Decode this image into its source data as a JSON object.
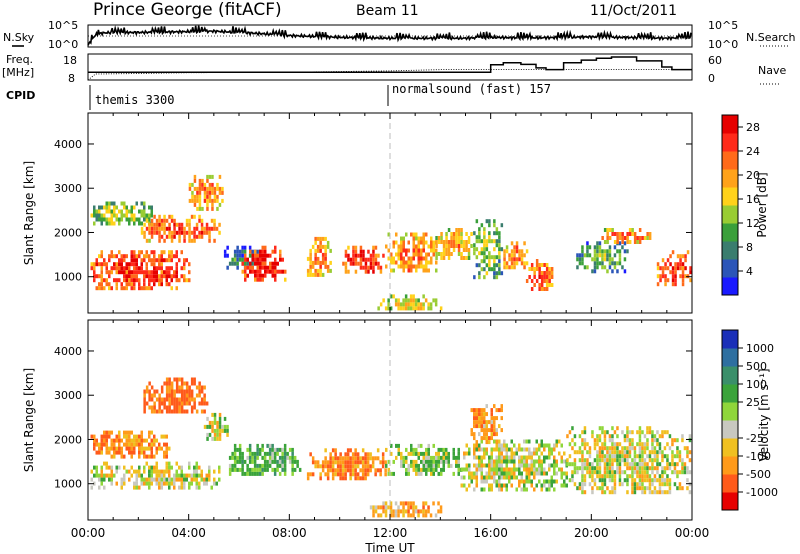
{
  "header": {
    "station": "Prince George (fitACF)",
    "beam": "Beam 11",
    "date": "11/Oct/2011"
  },
  "panels": {
    "noise": {
      "left_label": "N.Sky",
      "right_label": "N.Search",
      "left_ticks": [
        "10^5",
        "10^0"
      ],
      "right_ticks": [
        "10^5",
        "10^0"
      ]
    },
    "freq": {
      "left_label_1": "Freq.",
      "left_label_2": "[MHz]",
      "right_label": "Nave",
      "left_ticks": [
        "18",
        "8"
      ],
      "right_ticks": [
        "60",
        "0"
      ]
    },
    "cpid": {
      "label": "CPID",
      "mode_1": "themis 3300",
      "mode_2": "normalsound (fast) 157"
    }
  },
  "colorbars": {
    "power": {
      "title": "Power [dB]",
      "ticks": [
        "28",
        "24",
        "20",
        "16",
        "12",
        "8",
        "4"
      ],
      "colors": [
        "#1a1aff",
        "#2b55b8",
        "#3a7d6e",
        "#3a9f3a",
        "#99cc33",
        "#ffd21a",
        "#ffa21a",
        "#ff6a1a",
        "#ff2a1a",
        "#e60000"
      ]
    },
    "velocity": {
      "title": "Velocity [m s⁻¹]",
      "ticks": [
        "1000",
        "500",
        "100",
        "25",
        "-25",
        "-100",
        "-500",
        "-1000"
      ],
      "colors": [
        "#1a2fb8",
        "#2e6fa0",
        "#3a8f6a",
        "#3aa33a",
        "#8fd63a",
        "#c8c8c0",
        "#f0c020",
        "#ff9a1a",
        "#ff5a1a",
        "#e60000"
      ]
    }
  },
  "axes": {
    "ylabel": "Slant Range [km]",
    "xlabel": "Time UT",
    "yticks": [
      "4000",
      "3000",
      "2000",
      "1000"
    ],
    "xticks": [
      "00:00",
      "04:00",
      "08:00",
      "12:00",
      "16:00",
      "20:00",
      "00:00"
    ]
  },
  "chart_data": [
    {
      "type": "heatmap",
      "name": "noise",
      "series": [
        {
          "name": "N.Sky",
          "x_hours": [
            0,
            0.3,
            0.6,
            1,
            2,
            3,
            4,
            5,
            6,
            7,
            8,
            9,
            10,
            11,
            12,
            13,
            14,
            15,
            16,
            17,
            18,
            19,
            20,
            21,
            22,
            23,
            24
          ],
          "y_log10": [
            0.4,
            2.8,
            3.2,
            3.3,
            3.3,
            3.4,
            3.5,
            3.6,
            3.3,
            3.0,
            2.6,
            2.4,
            2.2,
            2.1,
            2.0,
            2.0,
            2.0,
            2.0,
            2.2,
            2.1,
            2.1,
            2.2,
            2.3,
            2.2,
            2.1,
            2.0,
            2.2
          ]
        },
        {
          "name": "N.Search",
          "x_hours": [
            0,
            6,
            12,
            18,
            24
          ],
          "y_log10": [
            2.5,
            2.5,
            2.5,
            2.5,
            2.5
          ]
        }
      ]
    },
    {
      "type": "line",
      "name": "frequency_nave",
      "series": [
        {
          "name": "Freq.",
          "x_hours": [
            0,
            0.3,
            2,
            4,
            8,
            12,
            14,
            15.5,
            16.5,
            18,
            20,
            22,
            24
          ],
          "y_mhz": [
            8,
            10.3,
            10.5,
            10.8,
            11.0,
            11.5,
            12.0,
            12.0,
            12.0,
            12.0,
            12.0,
            12.0,
            12.0
          ]
        },
        {
          "name": "Nave",
          "x_hours": [
            0,
            12,
            15.5,
            16,
            16.5,
            17.2,
            17.8,
            18.2,
            18.9,
            19.6,
            20.2,
            20.8,
            21.3,
            21.8,
            22.2,
            22.8,
            23.2,
            24
          ],
          "y_count": [
            18,
            18,
            18,
            35,
            40,
            36,
            28,
            24,
            40,
            46,
            50,
            53,
            53,
            44,
            44,
            30,
            24,
            24
          ]
        }
      ]
    },
    {
      "type": "heatmap",
      "name": "power",
      "x_hours_range": [
        0,
        24
      ],
      "ylim": [
        180,
        4700
      ],
      "colorbar_range_db": [
        0,
        30
      ],
      "blobs": [
        {
          "t": [
            0.1,
            4.0
          ],
          "r": [
            750,
            1600
          ],
          "val": 26
        },
        {
          "t": [
            0.1,
            2.5
          ],
          "r": [
            2200,
            2700
          ],
          "val": 15
        },
        {
          "t": [
            2.0,
            5.2
          ],
          "r": [
            1800,
            2400
          ],
          "val": 24
        },
        {
          "t": [
            4.0,
            5.3
          ],
          "r": [
            2500,
            3300
          ],
          "val": 22
        },
        {
          "t": [
            5.4,
            6.8
          ],
          "r": [
            1200,
            1700
          ],
          "val": 8
        },
        {
          "t": [
            6.1,
            7.8
          ],
          "r": [
            900,
            1700
          ],
          "val": 28
        },
        {
          "t": [
            8.7,
            9.6
          ],
          "r": [
            1000,
            1900
          ],
          "val": 22
        },
        {
          "t": [
            10.1,
            11.7
          ],
          "r": [
            1100,
            1700
          ],
          "val": 27
        },
        {
          "t": [
            11.8,
            13.8
          ],
          "r": [
            1100,
            2000
          ],
          "val": 22
        },
        {
          "t": [
            13.8,
            15.2
          ],
          "r": [
            1400,
            2100
          ],
          "val": 20
        },
        {
          "t": [
            15.3,
            16.4
          ],
          "r": [
            1000,
            2300
          ],
          "val": 14
        },
        {
          "t": [
            16.5,
            17.4
          ],
          "r": [
            1200,
            1800
          ],
          "val": 22
        },
        {
          "t": [
            17.4,
            18.4
          ],
          "r": [
            700,
            1400
          ],
          "val": 24
        },
        {
          "t": [
            19.4,
            21.4
          ],
          "r": [
            1100,
            1800
          ],
          "val": 12
        },
        {
          "t": [
            20.3,
            22.4
          ],
          "r": [
            1800,
            2100
          ],
          "val": 22
        },
        {
          "t": [
            22.6,
            23.9
          ],
          "r": [
            800,
            1600
          ],
          "val": 26
        },
        {
          "t": [
            11.5,
            14.0
          ],
          "r": [
            250,
            600
          ],
          "val": 18
        }
      ]
    },
    {
      "type": "heatmap",
      "name": "velocity",
      "x_hours_range": [
        0,
        24
      ],
      "ylim": [
        180,
        4700
      ],
      "colorbar_range_ms": [
        -1000,
        1000
      ],
      "blobs": [
        {
          "t": [
            0.1,
            5.2
          ],
          "r": [
            900,
            1500
          ],
          "val": 0
        },
        {
          "t": [
            0.1,
            3.2
          ],
          "r": [
            1600,
            2200
          ],
          "val": -200
        },
        {
          "t": [
            2.2,
            4.8
          ],
          "r": [
            2600,
            3400
          ],
          "val": -300
        },
        {
          "t": [
            4.6,
            5.5
          ],
          "r": [
            2000,
            2600
          ],
          "val": 0
        },
        {
          "t": [
            5.6,
            8.4
          ],
          "r": [
            1200,
            1900
          ],
          "val": 150
        },
        {
          "t": [
            8.7,
            11.8
          ],
          "r": [
            1100,
            1800
          ],
          "val": -200
        },
        {
          "t": [
            11.8,
            14.8
          ],
          "r": [
            1200,
            1900
          ],
          "val": 80
        },
        {
          "t": [
            14.8,
            19.0
          ],
          "r": [
            900,
            2000
          ],
          "val": 0
        },
        {
          "t": [
            19.0,
            23.9
          ],
          "r": [
            800,
            2300
          ],
          "val": 0
        },
        {
          "t": [
            15.2,
            16.4
          ],
          "r": [
            1900,
            2800
          ],
          "val": -150
        },
        {
          "t": [
            11.0,
            14.0
          ],
          "r": [
            250,
            600
          ],
          "val": -120
        }
      ]
    }
  ]
}
